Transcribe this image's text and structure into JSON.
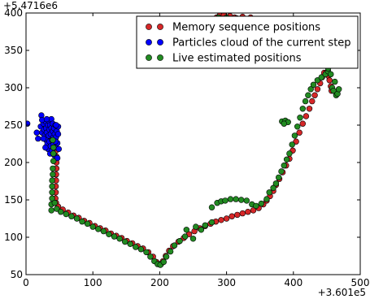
{
  "chart_data": {
    "type": "scatter",
    "title": "",
    "xlabel": "",
    "ylabel": "",
    "x_offset_label": "+3.601e5",
    "y_offset_label": "+5.4716e6",
    "xlim": [
      0,
      500
    ],
    "ylim": [
      50,
      400
    ],
    "x_ticks": [
      0,
      100,
      200,
      300,
      400,
      500
    ],
    "y_ticks": [
      50,
      100,
      150,
      200,
      250,
      300,
      350,
      400
    ],
    "x_tick_labels": [
      "0",
      "100",
      "200",
      "300",
      "400",
      "500"
    ],
    "y_tick_labels": [
      "50",
      "100",
      "150",
      "200",
      "250",
      "300",
      "350",
      "400"
    ],
    "grid": false,
    "legend_position": "top-right",
    "series": [
      {
        "name": "Memory sequence positions",
        "color": "#d62728",
        "points": [
          [
            43,
            250
          ],
          [
            43.5,
            240
          ],
          [
            44,
            232
          ],
          [
            44.5,
            224
          ],
          [
            45,
            216
          ],
          [
            45.5,
            208
          ],
          [
            45.5,
            200
          ],
          [
            45.5,
            192
          ],
          [
            45,
            184
          ],
          [
            45,
            176
          ],
          [
            44.5,
            168
          ],
          [
            44.5,
            160
          ],
          [
            44,
            152
          ],
          [
            45,
            146
          ],
          [
            48,
            141
          ],
          [
            55,
            137
          ],
          [
            63,
            133
          ],
          [
            71,
            129
          ],
          [
            79,
            126
          ],
          [
            87,
            122
          ],
          [
            95,
            119
          ],
          [
            103,
            115
          ],
          [
            111,
            112
          ],
          [
            119,
            109
          ],
          [
            127,
            105
          ],
          [
            135,
            102
          ],
          [
            143,
            99
          ],
          [
            151,
            95
          ],
          [
            159,
            92
          ],
          [
            167,
            88
          ],
          [
            175,
            85
          ],
          [
            183,
            80
          ],
          [
            190,
            74
          ],
          [
            195,
            67
          ],
          [
            199,
            64
          ],
          [
            202,
            64
          ],
          [
            205,
            68
          ],
          [
            209,
            75
          ],
          [
            214,
            82
          ],
          [
            220,
            88
          ],
          [
            228,
            94
          ],
          [
            236,
            99
          ],
          [
            244,
            104
          ],
          [
            252,
            108
          ],
          [
            260,
            112
          ],
          [
            268,
            115
          ],
          [
            276,
            118
          ],
          [
            284,
            121
          ],
          [
            292,
            123
          ],
          [
            300,
            125
          ],
          [
            308,
            128
          ],
          [
            316,
            130
          ],
          [
            324,
            132
          ],
          [
            332,
            134
          ],
          [
            340,
            136
          ],
          [
            348,
            139
          ],
          [
            355,
            144
          ],
          [
            360,
            149
          ],
          [
            365,
            155
          ],
          [
            370,
            162
          ],
          [
            374,
            170
          ],
          [
            379,
            178
          ],
          [
            384,
            187
          ],
          [
            389,
            196
          ],
          [
            394,
            205
          ],
          [
            399,
            216
          ],
          [
            404,
            228
          ],
          [
            409,
            240
          ],
          [
            414,
            252
          ],
          [
            419,
            262
          ],
          [
            424,
            272
          ],
          [
            428,
            282
          ],
          [
            432,
            290
          ],
          [
            436,
            298
          ],
          [
            440,
            306
          ],
          [
            443,
            314
          ],
          [
            446,
            320
          ],
          [
            449,
            320
          ],
          [
            452,
            316
          ],
          [
            454,
            310
          ],
          [
            456,
            302
          ],
          [
            457,
            296
          ],
          [
            432,
            337
          ],
          [
            420,
            348
          ],
          [
            408,
            357
          ],
          [
            396,
            366
          ],
          [
            384,
            373
          ],
          [
            372,
            380
          ],
          [
            360,
            386
          ],
          [
            348,
            391
          ],
          [
            336,
            394
          ],
          [
            324,
            395
          ],
          [
            312,
            394
          ],
          [
            300,
            392
          ],
          [
            290,
            390
          ],
          [
            285,
            394
          ],
          [
            290,
            397
          ],
          [
            296,
            397
          ],
          [
            305,
            396
          ],
          [
            315,
            393
          ]
        ]
      },
      {
        "name": "Particles cloud of the current step",
        "color": "#0000ff",
        "points": [
          [
            2,
            252
          ],
          [
            16,
            240
          ],
          [
            18,
            232
          ],
          [
            22,
            248
          ],
          [
            23,
            263
          ],
          [
            24,
            240
          ],
          [
            26,
            252
          ],
          [
            27,
            244
          ],
          [
            28,
            236
          ],
          [
            29,
            255
          ],
          [
            30,
            230
          ],
          [
            30,
            246
          ],
          [
            31,
            240
          ],
          [
            32,
            225
          ],
          [
            33,
            250
          ],
          [
            33,
            218
          ],
          [
            34,
            256
          ],
          [
            34,
            236
          ],
          [
            35,
            244
          ],
          [
            35,
            228
          ],
          [
            36,
            212
          ],
          [
            36,
            250
          ],
          [
            37,
            238
          ],
          [
            37,
            222
          ],
          [
            38,
            246
          ],
          [
            38,
            258
          ],
          [
            39,
            230
          ],
          [
            39,
            216
          ],
          [
            40,
            242
          ],
          [
            40,
            252
          ],
          [
            41,
            234
          ],
          [
            41,
            224
          ],
          [
            42,
            246
          ],
          [
            42,
            210
          ],
          [
            43,
            238
          ],
          [
            43,
            230
          ],
          [
            44,
            250
          ],
          [
            44,
            220
          ],
          [
            45,
            234
          ],
          [
            46,
            242
          ],
          [
            47,
            226
          ],
          [
            47,
            206
          ],
          [
            48,
            238
          ],
          [
            48,
            248
          ],
          [
            49,
            218
          ],
          [
            24,
            257
          ],
          [
            26,
            232
          ],
          [
            29,
            220
          ],
          [
            31,
            258
          ],
          [
            45,
            250
          ],
          [
            44,
            228
          ]
        ]
      },
      {
        "name": "Live estimated positions",
        "color": "#228b22",
        "points": [
          [
            40,
            230
          ],
          [
            41,
            220
          ],
          [
            41,
            212
          ],
          [
            41,
            202
          ],
          [
            40,
            192
          ],
          [
            40,
            184
          ],
          [
            39,
            176
          ],
          [
            39,
            168
          ],
          [
            39,
            160
          ],
          [
            39,
            152
          ],
          [
            38,
            144
          ],
          [
            38,
            136
          ],
          [
            43,
            146
          ],
          [
            46,
            138
          ],
          [
            52,
            134
          ],
          [
            60,
            131
          ],
          [
            68,
            128
          ],
          [
            76,
            125
          ],
          [
            84,
            121
          ],
          [
            92,
            118
          ],
          [
            100,
            114
          ],
          [
            108,
            111
          ],
          [
            116,
            108
          ],
          [
            124,
            104
          ],
          [
            132,
            101
          ],
          [
            140,
            98
          ],
          [
            148,
            94
          ],
          [
            156,
            91
          ],
          [
            164,
            87
          ],
          [
            172,
            84
          ],
          [
            180,
            80
          ],
          [
            186,
            74
          ],
          [
            192,
            68
          ],
          [
            197,
            64
          ],
          [
            201,
            63
          ],
          [
            206,
            67
          ],
          [
            210,
            74
          ],
          [
            216,
            81
          ],
          [
            222,
            89
          ],
          [
            230,
            95
          ],
          [
            238,
            101
          ],
          [
            250,
            98
          ],
          [
            262,
            110
          ],
          [
            278,
            120
          ],
          [
            278,
            140
          ],
          [
            286,
            146
          ],
          [
            292,
            148
          ],
          [
            298,
            149
          ],
          [
            306,
            151
          ],
          [
            314,
            151
          ],
          [
            322,
            150
          ],
          [
            330,
            149
          ],
          [
            338,
            144
          ],
          [
            344,
            142
          ],
          [
            352,
            145
          ],
          [
            360,
            151
          ],
          [
            364,
            160
          ],
          [
            370,
            166
          ],
          [
            374,
            172
          ],
          [
            378,
            180
          ],
          [
            382,
            188
          ],
          [
            386,
            196
          ],
          [
            390,
            204
          ],
          [
            394,
            212
          ],
          [
            398,
            224
          ],
          [
            402,
            236
          ],
          [
            406,
            248
          ],
          [
            410,
            260
          ],
          [
            414,
            272
          ],
          [
            418,
            282
          ],
          [
            422,
            290
          ],
          [
            426,
            298
          ],
          [
            430,
            304
          ],
          [
            436,
            310
          ],
          [
            442,
            314
          ],
          [
            448,
            318
          ],
          [
            452,
            322
          ],
          [
            458,
            300
          ],
          [
            460,
            296
          ],
          [
            464,
            290
          ],
          [
            466,
            292
          ],
          [
            468,
            298
          ],
          [
            462,
            308
          ],
          [
            456,
            318
          ],
          [
            452,
            326
          ],
          [
            444,
            333
          ],
          [
            383,
            255
          ],
          [
            388,
            256
          ],
          [
            392,
            254
          ],
          [
            386,
            252
          ],
          [
            288,
            394
          ],
          [
            300,
            394
          ],
          [
            310,
            392
          ],
          [
            320,
            390
          ],
          [
            328,
            386
          ],
          [
            336,
            384
          ],
          [
            344,
            382
          ],
          [
            352,
            380
          ],
          [
            360,
            378
          ],
          [
            370,
            374
          ],
          [
            380,
            368
          ],
          [
            390,
            362
          ],
          [
            400,
            355
          ],
          [
            412,
            346
          ],
          [
            422,
            340
          ],
          [
            434,
            332
          ],
          [
            240,
            110
          ],
          [
            254,
            114
          ],
          [
            268,
            116
          ]
        ]
      }
    ]
  }
}
